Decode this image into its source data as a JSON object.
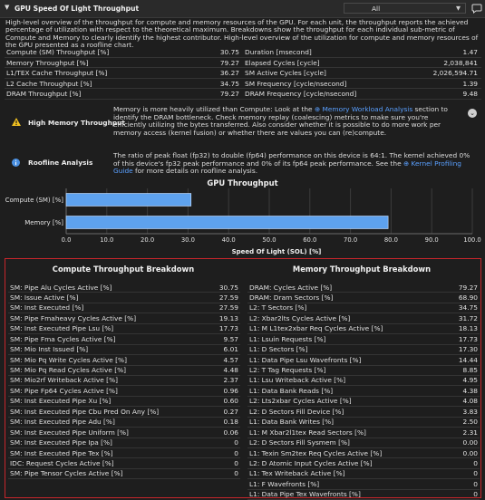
{
  "header": {
    "title": "GPU Speed Of Light Throughput",
    "filter_value": "All"
  },
  "description": "High-level overview of the throughput for compute and memory resources of the GPU. For each unit, the throughput reports the achieved percentage of utilization with respect to the theoretical maximum. Breakdowns show the throughput for each individual sub-metric of Compute and Memory to clearly identify the highest contributor. High-level overview of the utilization for compute and memory resources of the GPU presented as a roofline chart.",
  "metrics": {
    "left": [
      {
        "label": "Compute (SM) Throughput [%]",
        "value": "30.75"
      },
      {
        "label": "Memory Throughput [%]",
        "value": "79.27"
      },
      {
        "label": "L1/TEX Cache Throughput [%]",
        "value": "36.27"
      },
      {
        "label": "L2 Cache Throughput [%]",
        "value": "34.75"
      },
      {
        "label": "DRAM Throughput [%]",
        "value": "79.27"
      }
    ],
    "right": [
      {
        "label": "Duration [msecond]",
        "value": "1.47"
      },
      {
        "label": "Elapsed Cycles [cycle]",
        "value": "2,038,841"
      },
      {
        "label": "SM Active Cycles [cycle]",
        "value": "2,026,594.71"
      },
      {
        "label": "SM Frequency [cycle/nsecond]",
        "value": "1.39"
      },
      {
        "label": "DRAM Frequency [cycle/nsecond]",
        "value": "9.48"
      }
    ]
  },
  "rules": {
    "memory": {
      "name": "High Memory Throughput",
      "text_before": "Memory is more heavily utilized than Compute: Look at the ",
      "link": "Memory Workload Analysis",
      "text_after": " section to identify the DRAM bottleneck. Check memory replay (coalescing) metrics to make sure you're efficiently utilizing the bytes transferred. Also consider whether it is possible to do more work per memory access (kernel fusion) or whether there are values you can (re)compute."
    },
    "roofline": {
      "name": "Roofline Analysis",
      "text_before": "The ratio of peak float (fp32) to double (fp64) performance on this device is 64:1. The kernel achieved 0% of this device's fp32 peak performance and 0% of its fp64 peak performance. See the ",
      "link": "Kernel Profiling Guide",
      "text_after": " for more details on roofline analysis."
    }
  },
  "chart_data": {
    "type": "bar",
    "orientation": "horizontal",
    "title": "GPU Throughput",
    "categories": [
      "Compute (SM) [%]",
      "Memory [%]"
    ],
    "values": [
      30.75,
      79.27
    ],
    "xlabel": "Speed Of Light (SOL) [%]",
    "ylabel": "",
    "xlim": [
      0,
      100
    ],
    "xticks": [
      "0.0",
      "10.0",
      "20.0",
      "30.0",
      "40.0",
      "50.0",
      "60.0",
      "70.0",
      "80.0",
      "90.0",
      "100.0"
    ],
    "bar_color": "#5ea2ee",
    "grid": true
  },
  "breakdown": {
    "compute_title": "Compute Throughput Breakdown",
    "memory_title": "Memory Throughput Breakdown",
    "compute": [
      {
        "label": "SM: Pipe Alu Cycles Active [%]",
        "value": "30.75"
      },
      {
        "label": "SM: Issue Active [%]",
        "value": "27.59"
      },
      {
        "label": "SM: Inst Executed [%]",
        "value": "27.59"
      },
      {
        "label": "SM: Pipe Fmaheavy Cycles Active [%]",
        "value": "19.13"
      },
      {
        "label": "SM: Inst Executed Pipe Lsu [%]",
        "value": "17.73"
      },
      {
        "label": "SM: Pipe Fma Cycles Active [%]",
        "value": "9.57"
      },
      {
        "label": "SM: Mio Inst Issued [%]",
        "value": "6.01"
      },
      {
        "label": "SM: Mio Pq Write Cycles Active [%]",
        "value": "4.57"
      },
      {
        "label": "SM: Mio Pq Read Cycles Active [%]",
        "value": "4.48"
      },
      {
        "label": "SM: Mio2rf Writeback Active [%]",
        "value": "2.37"
      },
      {
        "label": "SM: Pipe Fp64 Cycles Active [%]",
        "value": "0.96"
      },
      {
        "label": "SM: Inst Executed Pipe Xu [%]",
        "value": "0.60"
      },
      {
        "label": "SM: Inst Executed Pipe Cbu Pred On Any [%]",
        "value": "0.27"
      },
      {
        "label": "SM: Inst Executed Pipe Adu [%]",
        "value": "0.18"
      },
      {
        "label": "SM: Inst Executed Pipe Uniform [%]",
        "value": "0.06"
      },
      {
        "label": "SM: Inst Executed Pipe Ipa [%]",
        "value": "0"
      },
      {
        "label": "SM: Inst Executed Pipe Tex [%]",
        "value": "0"
      },
      {
        "label": "IDC: Request Cycles Active [%]",
        "value": "0"
      },
      {
        "label": "SM: Pipe Tensor Cycles Active [%]",
        "value": "0"
      }
    ],
    "memory": [
      {
        "label": "DRAM: Cycles Active [%]",
        "value": "79.27"
      },
      {
        "label": "DRAM: Dram Sectors [%]",
        "value": "68.90"
      },
      {
        "label": "L2: T Sectors [%]",
        "value": "34.75"
      },
      {
        "label": "L2: Xbar2lts Cycles Active [%]",
        "value": "31.72"
      },
      {
        "label": "L1: M L1tex2xbar Req Cycles Active [%]",
        "value": "18.13"
      },
      {
        "label": "L1: Lsuin Requests [%]",
        "value": "17.73"
      },
      {
        "label": "L1: D Sectors [%]",
        "value": "17.30"
      },
      {
        "label": "L1: Data Pipe Lsu Wavefronts [%]",
        "value": "14.44"
      },
      {
        "label": "L2: T Tag Requests [%]",
        "value": "8.85"
      },
      {
        "label": "L1: Lsu Writeback Active [%]",
        "value": "4.95"
      },
      {
        "label": "L1: Data Bank Reads [%]",
        "value": "4.38"
      },
      {
        "label": "L2: Lts2xbar Cycles Active [%]",
        "value": "4.08"
      },
      {
        "label": "L2: D Sectors Fill Device [%]",
        "value": "3.83"
      },
      {
        "label": "L1: Data Bank Writes [%]",
        "value": "2.50"
      },
      {
        "label": "L1: M Xbar2l1tex Read Sectors [%]",
        "value": "2.31"
      },
      {
        "label": "L2: D Sectors Fill Sysmem [%]",
        "value": "0.00"
      },
      {
        "label": "L1: Texin Sm2tex Req Cycles Active [%]",
        "value": "0.00"
      },
      {
        "label": "L2: D Atomic Input Cycles Active [%]",
        "value": "0"
      },
      {
        "label": "L1: Tex Writeback Active [%]",
        "value": "0"
      },
      {
        "label": "L1: F Wavefronts [%]",
        "value": "0"
      },
      {
        "label": "L1: Data Pipe Tex Wavefronts [%]",
        "value": "0"
      }
    ]
  }
}
